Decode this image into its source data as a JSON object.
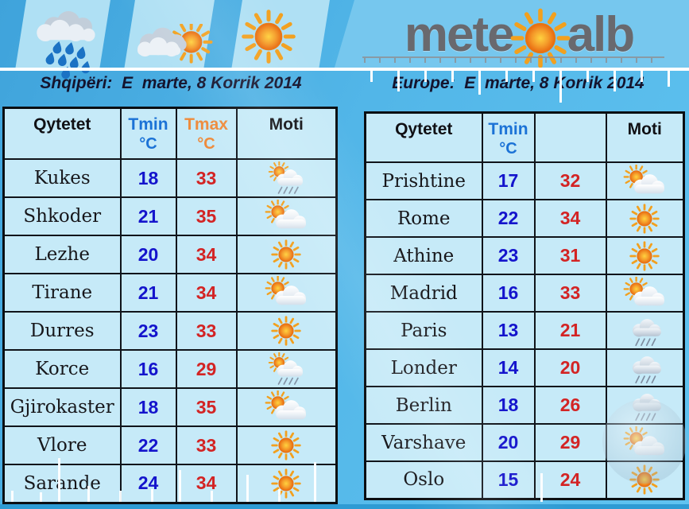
{
  "banner": {
    "weather_icons": [
      {
        "icon": "rain-drops",
        "name": "rain-drops-icon"
      },
      {
        "icon": "cloud-sun",
        "name": "cloud-sun-icon"
      },
      {
        "icon": "sun",
        "name": "sun-icon"
      }
    ],
    "logo": {
      "prefix": "mete",
      "suffix": "alb",
      "sun_icon": "sun-icon"
    }
  },
  "colors": {
    "background_blue": "#52B6E8",
    "cell_blue": "#C6EAF8",
    "tmin_header": "#1B72D6",
    "tmax_header": "#EE8B3C",
    "tmin_value": "#1414CC",
    "tmax_value": "#D32424",
    "logo_gray": "#69696E"
  },
  "sections": {
    "left": {
      "title": "Shqipëri:  E  marte, 8 Korrik 2014",
      "headers": {
        "city": "Qytetet",
        "tmin_label": "Tmin",
        "tmin_unit": "°C",
        "tmax_label": "Tmax",
        "tmax_unit": "°C",
        "moti": "Moti"
      },
      "rows": [
        {
          "city": "Kukes",
          "tmin": "18",
          "tmax": "33",
          "icon": "sun-shower"
        },
        {
          "city": "Shkoder",
          "tmin": "21",
          "tmax": "35",
          "icon": "sun-cloud"
        },
        {
          "city": "Lezhe",
          "tmin": "20",
          "tmax": "34",
          "icon": "sun"
        },
        {
          "city": "Tirane",
          "tmin": "21",
          "tmax": "34",
          "icon": "sun-cloud"
        },
        {
          "city": "Durres",
          "tmin": "23",
          "tmax": "33",
          "icon": "sun"
        },
        {
          "city": "Korce",
          "tmin": "16",
          "tmax": "29",
          "icon": "sun-shower"
        },
        {
          "city": "Gjirokaster",
          "tmin": "18",
          "tmax": "35",
          "icon": "sun-cloud"
        },
        {
          "city": "Vlore",
          "tmin": "22",
          "tmax": "33",
          "icon": "sun"
        },
        {
          "city": "Sarande",
          "tmin": "24",
          "tmax": "34",
          "icon": "sun"
        }
      ]
    },
    "right": {
      "title": "Europe:  E  marte, 8 Korrik 2014",
      "headers": {
        "city": "Qytetet",
        "tmin_label": "Tmin",
        "tmin_unit": "°C",
        "tmax_label": "",
        "tmax_unit": "",
        "moti": "Moti"
      },
      "rows": [
        {
          "city": "Prishtine",
          "tmin": "17",
          "tmax": "32",
          "icon": "sun-cloud"
        },
        {
          "city": "Rome",
          "tmin": "22",
          "tmax": "34",
          "icon": "sun"
        },
        {
          "city": "Athine",
          "tmin": "23",
          "tmax": "31",
          "icon": "sun"
        },
        {
          "city": "Madrid",
          "tmin": "16",
          "tmax": "33",
          "icon": "sun-cloud"
        },
        {
          "city": "Paris",
          "tmin": "13",
          "tmax": "21",
          "icon": "rain"
        },
        {
          "city": "Londer",
          "tmin": "14",
          "tmax": "20",
          "icon": "rain"
        },
        {
          "city": "Berlin",
          "tmin": "18",
          "tmax": "26",
          "icon": "rain"
        },
        {
          "city": "Varshave",
          "tmin": "20",
          "tmax": "29",
          "icon": "sun-cloud"
        },
        {
          "city": "Oslo",
          "tmin": "15",
          "tmax": "24",
          "icon": "sun"
        }
      ]
    }
  },
  "chart_data": [
    {
      "type": "table",
      "title": "Shqipëri: E marte, 8 Korrik 2014",
      "columns": [
        "Qytetet",
        "Tmin °C",
        "Tmax °C",
        "Moti"
      ],
      "rows": [
        [
          "Kukes",
          18,
          33,
          "sun-shower"
        ],
        [
          "Shkoder",
          21,
          35,
          "sun-cloud"
        ],
        [
          "Lezhe",
          20,
          34,
          "sun"
        ],
        [
          "Tirane",
          21,
          34,
          "sun-cloud"
        ],
        [
          "Durres",
          23,
          33,
          "sun"
        ],
        [
          "Korce",
          16,
          29,
          "sun-shower"
        ],
        [
          "Gjirokaster",
          18,
          35,
          "sun-cloud"
        ],
        [
          "Vlore",
          22,
          33,
          "sun"
        ],
        [
          "Sarande",
          24,
          34,
          "sun"
        ]
      ]
    },
    {
      "type": "table",
      "title": "Europe: E marte, 8 Korrik 2014",
      "columns": [
        "Qytetet",
        "Tmin °C",
        "",
        "Moti"
      ],
      "rows": [
        [
          "Prishtine",
          17,
          32,
          "sun-cloud"
        ],
        [
          "Rome",
          22,
          34,
          "sun"
        ],
        [
          "Athine",
          23,
          31,
          "sun"
        ],
        [
          "Madrid",
          16,
          33,
          "sun-cloud"
        ],
        [
          "Paris",
          13,
          21,
          "rain"
        ],
        [
          "Londer",
          14,
          20,
          "rain"
        ],
        [
          "Berlin",
          18,
          26,
          "rain"
        ],
        [
          "Varshave",
          20,
          29,
          "sun-cloud"
        ],
        [
          "Oslo",
          15,
          24,
          "sun"
        ]
      ]
    }
  ]
}
